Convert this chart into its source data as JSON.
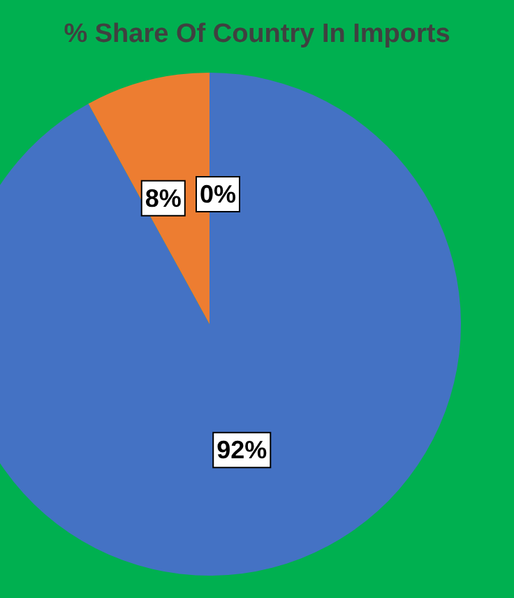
{
  "chart_data": {
    "type": "pie",
    "title": "% Share Of Country In Imports",
    "categories": [
      null,
      null,
      null
    ],
    "values": [
      92,
      8,
      0
    ],
    "colors": [
      "#4472c4",
      "#ed7d31",
      "#a5a5a5"
    ],
    "value_labels": [
      "92%",
      "8%",
      "0%"
    ]
  }
}
